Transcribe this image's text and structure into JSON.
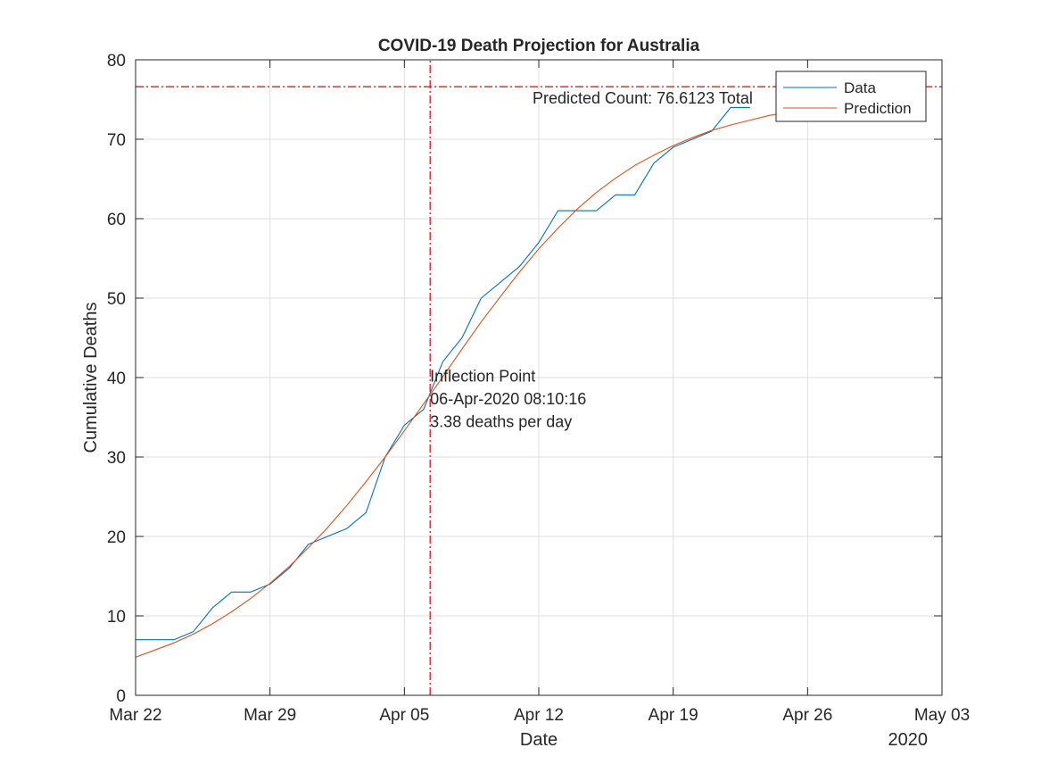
{
  "chart_data": {
    "type": "line",
    "title": "COVID-19 Death Projection for Australia",
    "xlabel": "Date",
    "ylabel": "Cumulative Deaths",
    "year_label": "2020",
    "xlim": [
      "2020-03-22",
      "2020-05-03"
    ],
    "ylim": [
      0,
      80
    ],
    "xticks": [
      {
        "date": "2020-03-22",
        "label": "Mar 22"
      },
      {
        "date": "2020-03-29",
        "label": "Mar 29"
      },
      {
        "date": "2020-04-05",
        "label": "Apr 05"
      },
      {
        "date": "2020-04-12",
        "label": "Apr 12"
      },
      {
        "date": "2020-04-19",
        "label": "Apr 19"
      },
      {
        "date": "2020-04-26",
        "label": "Apr 26"
      },
      {
        "date": "2020-05-03",
        "label": "May 03"
      }
    ],
    "yticks": [
      0,
      10,
      20,
      30,
      40,
      50,
      60,
      70,
      80
    ],
    "grid": true,
    "legend_position": "top-right",
    "series": [
      {
        "name": "Data",
        "color": "#0072bd",
        "points": [
          [
            "2020-03-22",
            7
          ],
          [
            "2020-03-23",
            7
          ],
          [
            "2020-03-24",
            7
          ],
          [
            "2020-03-25",
            8
          ],
          [
            "2020-03-26",
            11
          ],
          [
            "2020-03-27",
            13
          ],
          [
            "2020-03-28",
            13
          ],
          [
            "2020-03-29",
            14
          ],
          [
            "2020-03-30",
            16
          ],
          [
            "2020-03-31",
            19
          ],
          [
            "2020-04-01",
            20
          ],
          [
            "2020-04-02",
            21
          ],
          [
            "2020-04-03",
            23
          ],
          [
            "2020-04-04",
            30
          ],
          [
            "2020-04-05",
            34
          ],
          [
            "2020-04-06",
            36
          ],
          [
            "2020-04-07",
            42
          ],
          [
            "2020-04-08",
            45
          ],
          [
            "2020-04-09",
            50
          ],
          [
            "2020-04-10",
            52
          ],
          [
            "2020-04-11",
            54
          ],
          [
            "2020-04-12",
            57
          ],
          [
            "2020-04-13",
            61
          ],
          [
            "2020-04-14",
            61
          ],
          [
            "2020-04-15",
            61
          ],
          [
            "2020-04-16",
            63
          ],
          [
            "2020-04-17",
            63
          ],
          [
            "2020-04-18",
            67
          ],
          [
            "2020-04-19",
            69
          ],
          [
            "2020-04-20",
            70
          ],
          [
            "2020-04-21",
            71
          ],
          [
            "2020-04-22",
            74
          ],
          [
            "2020-04-23",
            74
          ]
        ]
      },
      {
        "name": "Prediction",
        "color": "#d95319",
        "points": [
          [
            "2020-03-22",
            4.8
          ],
          [
            "2020-03-23",
            5.7
          ],
          [
            "2020-03-24",
            6.6
          ],
          [
            "2020-03-25",
            7.7
          ],
          [
            "2020-03-26",
            9.0
          ],
          [
            "2020-03-27",
            10.5
          ],
          [
            "2020-03-28",
            12.2
          ],
          [
            "2020-03-29",
            14.1
          ],
          [
            "2020-03-30",
            16.2
          ],
          [
            "2020-03-31",
            18.6
          ],
          [
            "2020-04-01",
            21.1
          ],
          [
            "2020-04-02",
            23.9
          ],
          [
            "2020-04-03",
            26.9
          ],
          [
            "2020-04-04",
            30.0
          ],
          [
            "2020-04-05",
            33.3
          ],
          [
            "2020-04-06",
            36.7
          ],
          [
            "2020-04-07",
            40.1
          ],
          [
            "2020-04-08",
            43.6
          ],
          [
            "2020-04-09",
            47.0
          ],
          [
            "2020-04-10",
            50.2
          ],
          [
            "2020-04-11",
            53.3
          ],
          [
            "2020-04-12",
            56.2
          ],
          [
            "2020-04-13",
            58.8
          ],
          [
            "2020-04-14",
            61.2
          ],
          [
            "2020-04-15",
            63.3
          ],
          [
            "2020-04-16",
            65.1
          ],
          [
            "2020-04-17",
            66.7
          ],
          [
            "2020-04-18",
            68.0
          ],
          [
            "2020-04-19",
            69.2
          ],
          [
            "2020-04-20",
            70.2
          ],
          [
            "2020-04-21",
            71.1
          ],
          [
            "2020-04-22",
            71.8
          ],
          [
            "2020-04-23",
            72.4
          ],
          [
            "2020-04-24",
            73.0
          ],
          [
            "2020-04-25",
            73.4
          ],
          [
            "2020-04-26",
            73.8
          ],
          [
            "2020-04-27",
            74.1
          ]
        ]
      }
    ],
    "predicted_count": {
      "value": 76.6123,
      "label": "Predicted Count: 76.6123 Total",
      "color": "#e8000b"
    },
    "inflection": {
      "date": "2020-04-06T08:10:16",
      "lines": [
        "Inflection Point",
        "06-Apr-2020 08:10:16",
        "3.38 deaths per day"
      ],
      "color": "#e8000b"
    }
  }
}
